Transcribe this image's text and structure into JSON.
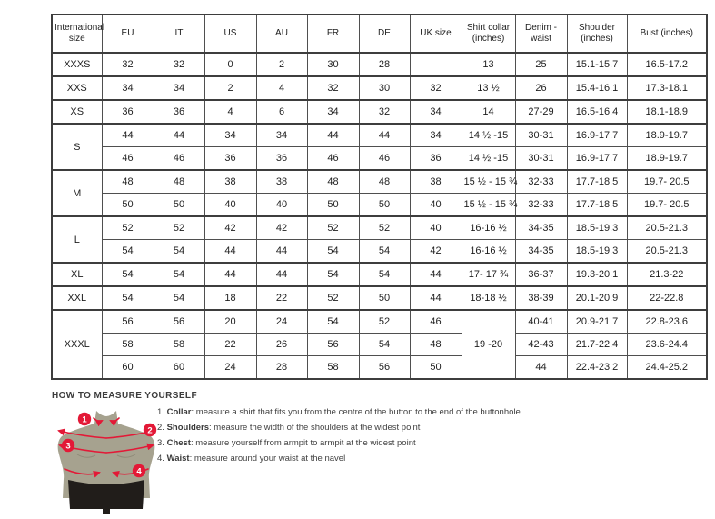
{
  "size_table": {
    "headers": [
      "International size",
      "EU",
      "IT",
      "US",
      "AU",
      "FR",
      "DE",
      "UK size",
      "Shirt collar (inches)",
      "Denim - waist",
      "Shoulder (inches)",
      "Bust (inches)"
    ],
    "groups": [
      {
        "size": "XXXS",
        "rows": [
          [
            "32",
            "32",
            "0",
            "2",
            "30",
            "28",
            "",
            "13",
            "25",
            "15.1-15.7",
            "16.5-17.2"
          ]
        ]
      },
      {
        "size": "XXS",
        "rows": [
          [
            "34",
            "34",
            "2",
            "4",
            "32",
            "30",
            "32",
            "13 ½",
            "26",
            "15.4-16.1",
            "17.3-18.1"
          ]
        ]
      },
      {
        "size": "XS",
        "rows": [
          [
            "36",
            "36",
            "4",
            "6",
            "34",
            "32",
            "34",
            "14",
            "27-29",
            "16.5-16.4",
            "18.1-18.9"
          ]
        ]
      },
      {
        "size": "S",
        "rows": [
          [
            "44",
            "44",
            "34",
            "34",
            "44",
            "44",
            "34",
            "14 ½ -15",
            "30-31",
            "16.9-17.7",
            "18.9-19.7"
          ],
          [
            "46",
            "46",
            "36",
            "36",
            "46",
            "46",
            "36",
            "14 ½ -15",
            "30-31",
            "16.9-17.7",
            "18.9-19.7"
          ]
        ]
      },
      {
        "size": "M",
        "rows": [
          [
            "48",
            "48",
            "38",
            "38",
            "48",
            "48",
            "38",
            "15 ½ - 15 ¾",
            "32-33",
            "17.7-18.5",
            "19.7- 20.5"
          ],
          [
            "50",
            "50",
            "40",
            "40",
            "50",
            "50",
            "40",
            "15 ½ - 15 ¾",
            "32-33",
            "17.7-18.5",
            "19.7- 20.5"
          ]
        ]
      },
      {
        "size": "L",
        "rows": [
          [
            "52",
            "52",
            "42",
            "42",
            "52",
            "52",
            "40",
            "16-16 ½",
            "34-35",
            "18.5-19.3",
            "20.5-21.3"
          ],
          [
            "54",
            "54",
            "44",
            "44",
            "54",
            "54",
            "42",
            "16-16 ½",
            "34-35",
            "18.5-19.3",
            "20.5-21.3"
          ]
        ]
      },
      {
        "size": "XL",
        "rows": [
          [
            "54",
            "54",
            "44",
            "44",
            "54",
            "54",
            "44",
            "17- 17 ¾",
            "36-37",
            "19.3-20.1",
            "21.3-22"
          ]
        ]
      },
      {
        "size": "XXL",
        "rows": [
          [
            "54",
            "54",
            "18",
            "22",
            "52",
            "50",
            "44",
            "18-18 ½",
            "38-39",
            "20.1-20.9",
            "22-22.8"
          ]
        ]
      },
      {
        "size": "XXXL",
        "merged_collar": "19 -20",
        "rows": [
          [
            "56",
            "56",
            "20",
            "24",
            "54",
            "52",
            "46",
            "40-41",
            "20.9-21.7",
            "22.8-23.6"
          ],
          [
            "58",
            "58",
            "22",
            "26",
            "56",
            "54",
            "48",
            "42-43",
            "21.7-22.4",
            "23.6-24.4"
          ],
          [
            "60",
            "60",
            "24",
            "28",
            "58",
            "56",
            "50",
            "44",
            "22.4-23.2",
            "24.4-25.2"
          ]
        ]
      }
    ]
  },
  "measure": {
    "heading": "HOW TO MEASURE YOURSELF",
    "items": [
      {
        "num": "1.",
        "label": "Collar",
        "text": ": measure a shirt that fits you from the centre of the button to the end of the buttonhole"
      },
      {
        "num": "2.",
        "label": "Shoulders",
        "text": ": measure the width of the shoulders at the widest point"
      },
      {
        "num": "3.",
        "label": "Chest",
        "text": ": measure yourself from armpit to armpit at the widest point"
      },
      {
        "num": "4.",
        "label": "Waist",
        "text": ": measure around your waist at the navel"
      }
    ],
    "figure_markers": [
      "1",
      "2",
      "3",
      "4"
    ],
    "colors": {
      "torso": "#a6a28f",
      "torso_shade": "#8f8b78",
      "shorts": "#211d1a",
      "accent": "#e31937"
    }
  }
}
